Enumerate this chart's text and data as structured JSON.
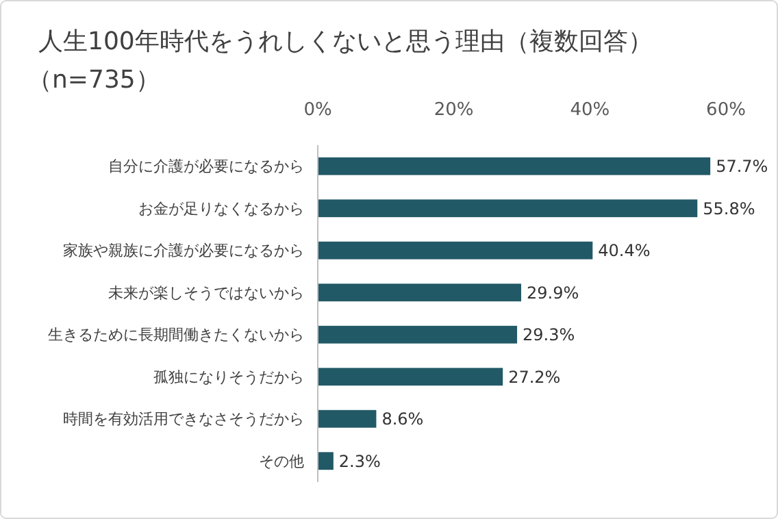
{
  "chart_data": {
    "type": "bar",
    "orientation": "horizontal",
    "title": "人生100年時代をうれしくないと思う理由（複数回答）",
    "subtitle": "（n=735）",
    "categories": [
      "自分に介護が必要になるから",
      "お金が足りなくなるから",
      "家族や親族に介護が必要になるから",
      "未来が楽しそうではないから",
      "生きるために長期間働きたくないから",
      "孤独になりそうだから",
      "時間を有効活用できなさそうだから",
      "その他"
    ],
    "values": [
      57.7,
      55.8,
      40.4,
      29.9,
      29.3,
      27.2,
      8.6,
      2.3
    ],
    "value_labels": [
      "57.7%",
      "55.8%",
      "40.4%",
      "29.9%",
      "29.3%",
      "27.2%",
      "8.6%",
      "2.3%"
    ],
    "color": "#225966",
    "xlim": [
      0,
      60
    ],
    "xticks": [
      {
        "value": 0,
        "label": "0%"
      },
      {
        "value": 20,
        "label": "20%"
      },
      {
        "value": 40,
        "label": "40%"
      },
      {
        "value": 60,
        "label": "60%"
      }
    ]
  }
}
